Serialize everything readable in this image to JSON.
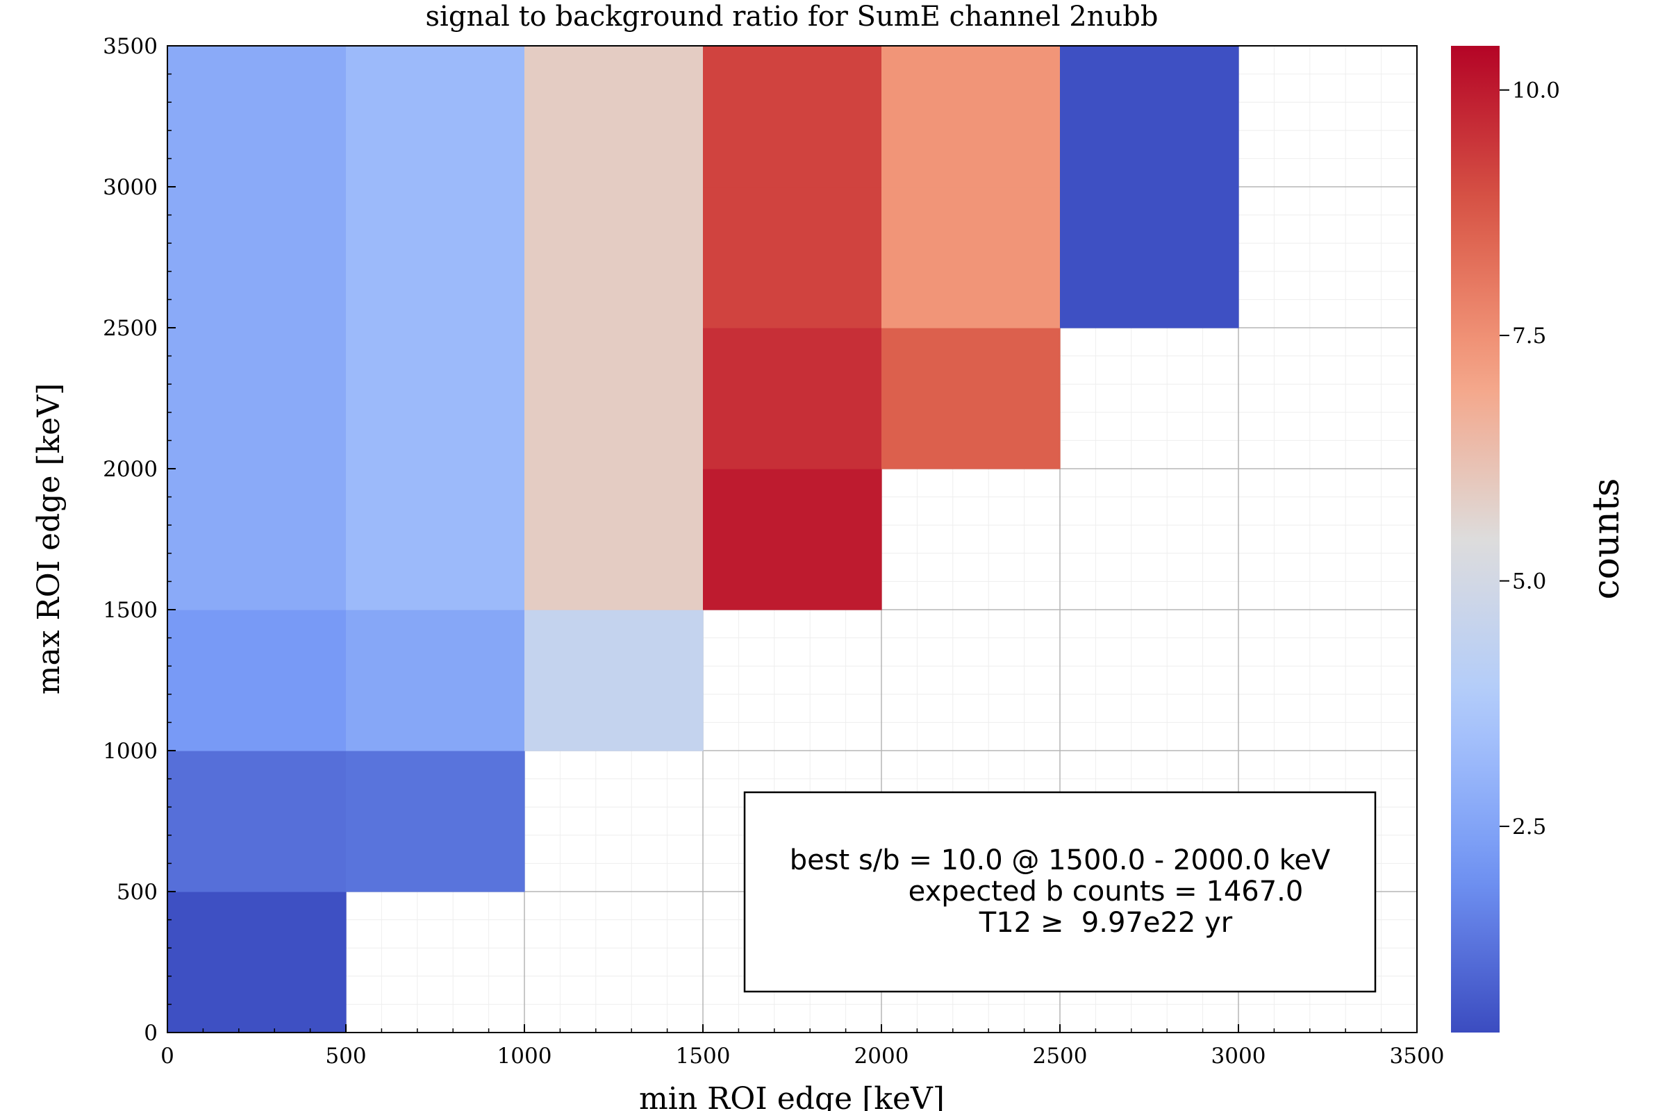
{
  "chart_data": {
    "type": "heatmap",
    "title": "signal to background ratio for SumE channel 2nubb",
    "xlabel": "min ROI edge [keV]",
    "ylabel": "max ROI edge [keV]",
    "colorbar_label": "counts",
    "xlim": [
      0,
      3500
    ],
    "ylim": [
      0,
      3500
    ],
    "x_ticks": [
      "0",
      "500",
      "1000",
      "1500",
      "2000",
      "2500",
      "3000",
      "3500"
    ],
    "y_ticks": [
      "0",
      "500",
      "1000",
      "1500",
      "2000",
      "2500",
      "3000",
      "3500"
    ],
    "colorbar_ticks": [
      "2.5",
      "5.0",
      "7.5",
      "10.0"
    ],
    "colorbar_range": [
      0.4,
      10.45
    ],
    "colormap": [
      "#3b4cc0",
      "#7396f5",
      "#b0cbfc",
      "#dddcdc",
      "#f6a283",
      "#d95847",
      "#b40426"
    ],
    "grid": true,
    "cells": [
      {
        "x": [
          0,
          500
        ],
        "y": [
          0,
          500
        ],
        "value": 0.5
      },
      {
        "x": [
          0,
          500
        ],
        "y": [
          500,
          1000
        ],
        "value": 1.2
      },
      {
        "x": [
          0,
          500
        ],
        "y": [
          1000,
          1500
        ],
        "value": 2.2
      },
      {
        "x": [
          0,
          500
        ],
        "y": [
          1500,
          2000
        ],
        "value": 2.7
      },
      {
        "x": [
          0,
          500
        ],
        "y": [
          2000,
          2500
        ],
        "value": 2.7
      },
      {
        "x": [
          0,
          500
        ],
        "y": [
          2500,
          3000
        ],
        "value": 2.7
      },
      {
        "x": [
          0,
          500
        ],
        "y": [
          3000,
          3500
        ],
        "value": 2.7
      },
      {
        "x": [
          500,
          1000
        ],
        "y": [
          500,
          1000
        ],
        "value": 1.3
      },
      {
        "x": [
          500,
          1000
        ],
        "y": [
          1000,
          1500
        ],
        "value": 2.6
      },
      {
        "x": [
          500,
          1000
        ],
        "y": [
          1500,
          2000
        ],
        "value": 3.2
      },
      {
        "x": [
          500,
          1000
        ],
        "y": [
          2000,
          2500
        ],
        "value": 3.2
      },
      {
        "x": [
          500,
          1000
        ],
        "y": [
          2500,
          3000
        ],
        "value": 3.2
      },
      {
        "x": [
          500,
          1000
        ],
        "y": [
          3000,
          3500
        ],
        "value": 3.2
      },
      {
        "x": [
          1000,
          1500
        ],
        "y": [
          1000,
          1500
        ],
        "value": 4.5
      },
      {
        "x": [
          1000,
          1500
        ],
        "y": [
          1500,
          2000
        ],
        "value": 5.9
      },
      {
        "x": [
          1000,
          1500
        ],
        "y": [
          2000,
          2500
        ],
        "value": 5.9
      },
      {
        "x": [
          1000,
          1500
        ],
        "y": [
          2500,
          3000
        ],
        "value": 5.9
      },
      {
        "x": [
          1000,
          1500
        ],
        "y": [
          3000,
          3500
        ],
        "value": 5.9
      },
      {
        "x": [
          1500,
          2000
        ],
        "y": [
          1500,
          2000
        ],
        "value": 10.0
      },
      {
        "x": [
          1500,
          2000
        ],
        "y": [
          2000,
          2500
        ],
        "value": 9.6
      },
      {
        "x": [
          1500,
          2000
        ],
        "y": [
          2500,
          3000
        ],
        "value": 9.2
      },
      {
        "x": [
          1500,
          2000
        ],
        "y": [
          3000,
          3500
        ],
        "value": 9.2
      },
      {
        "x": [
          2000,
          2500
        ],
        "y": [
          2000,
          2500
        ],
        "value": 8.6
      },
      {
        "x": [
          2000,
          2500
        ],
        "y": [
          2500,
          3000
        ],
        "value": 7.4
      },
      {
        "x": [
          2000,
          2500
        ],
        "y": [
          3000,
          3500
        ],
        "value": 7.4
      },
      {
        "x": [
          2500,
          3000
        ],
        "y": [
          2500,
          3000
        ],
        "value": 0.5
      },
      {
        "x": [
          2500,
          3000
        ],
        "y": [
          3000,
          3500
        ],
        "value": 0.5
      }
    ],
    "annotation": {
      "lines": [
        "best s/b = 10.0 @ 1500.0 - 2000.0 keV",
        "expected b counts = 1467.0",
        "T12 ≥  9.97e22 yr"
      ]
    }
  }
}
